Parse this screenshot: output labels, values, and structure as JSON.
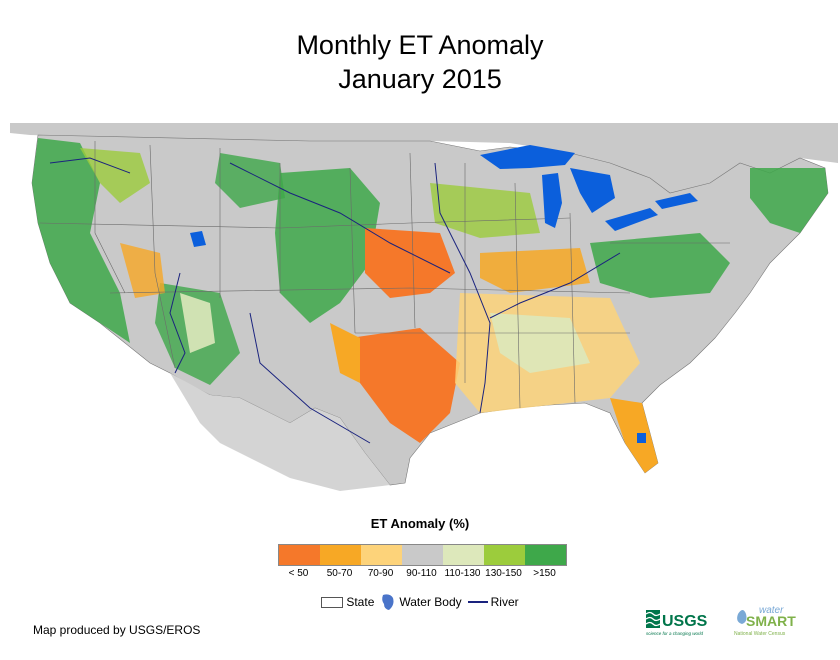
{
  "title": {
    "line1": "Monthly ET Anomaly",
    "line2": "January 2015"
  },
  "legend": {
    "title": "ET Anomaly (%)",
    "classes": [
      {
        "label": "< 50",
        "color": "#f5782a"
      },
      {
        "label": "50-70",
        "color": "#f7a825"
      },
      {
        "label": "70-90",
        "color": "#fdd37a"
      },
      {
        "label": "90-110",
        "color": "#c9c9c9"
      },
      {
        "label": "110-130",
        "color": "#dde8bb"
      },
      {
        "label": "130-150",
        "color": "#9ccc3c"
      },
      {
        "label": ">150",
        "color": "#3ea84a"
      }
    ]
  },
  "key": {
    "state": "State",
    "water_body": "Water Body",
    "river": "River"
  },
  "colors": {
    "water": "#0b5fdc",
    "river": "#1a237e",
    "land_background": "#c9c9c9"
  },
  "credit": "Map produced by USGS/EROS",
  "logos": {
    "usgs": "USGS",
    "usgs_tagline": "science for a changing world",
    "water_top": "water",
    "smart": "SMART",
    "census": "National Water Census"
  }
}
